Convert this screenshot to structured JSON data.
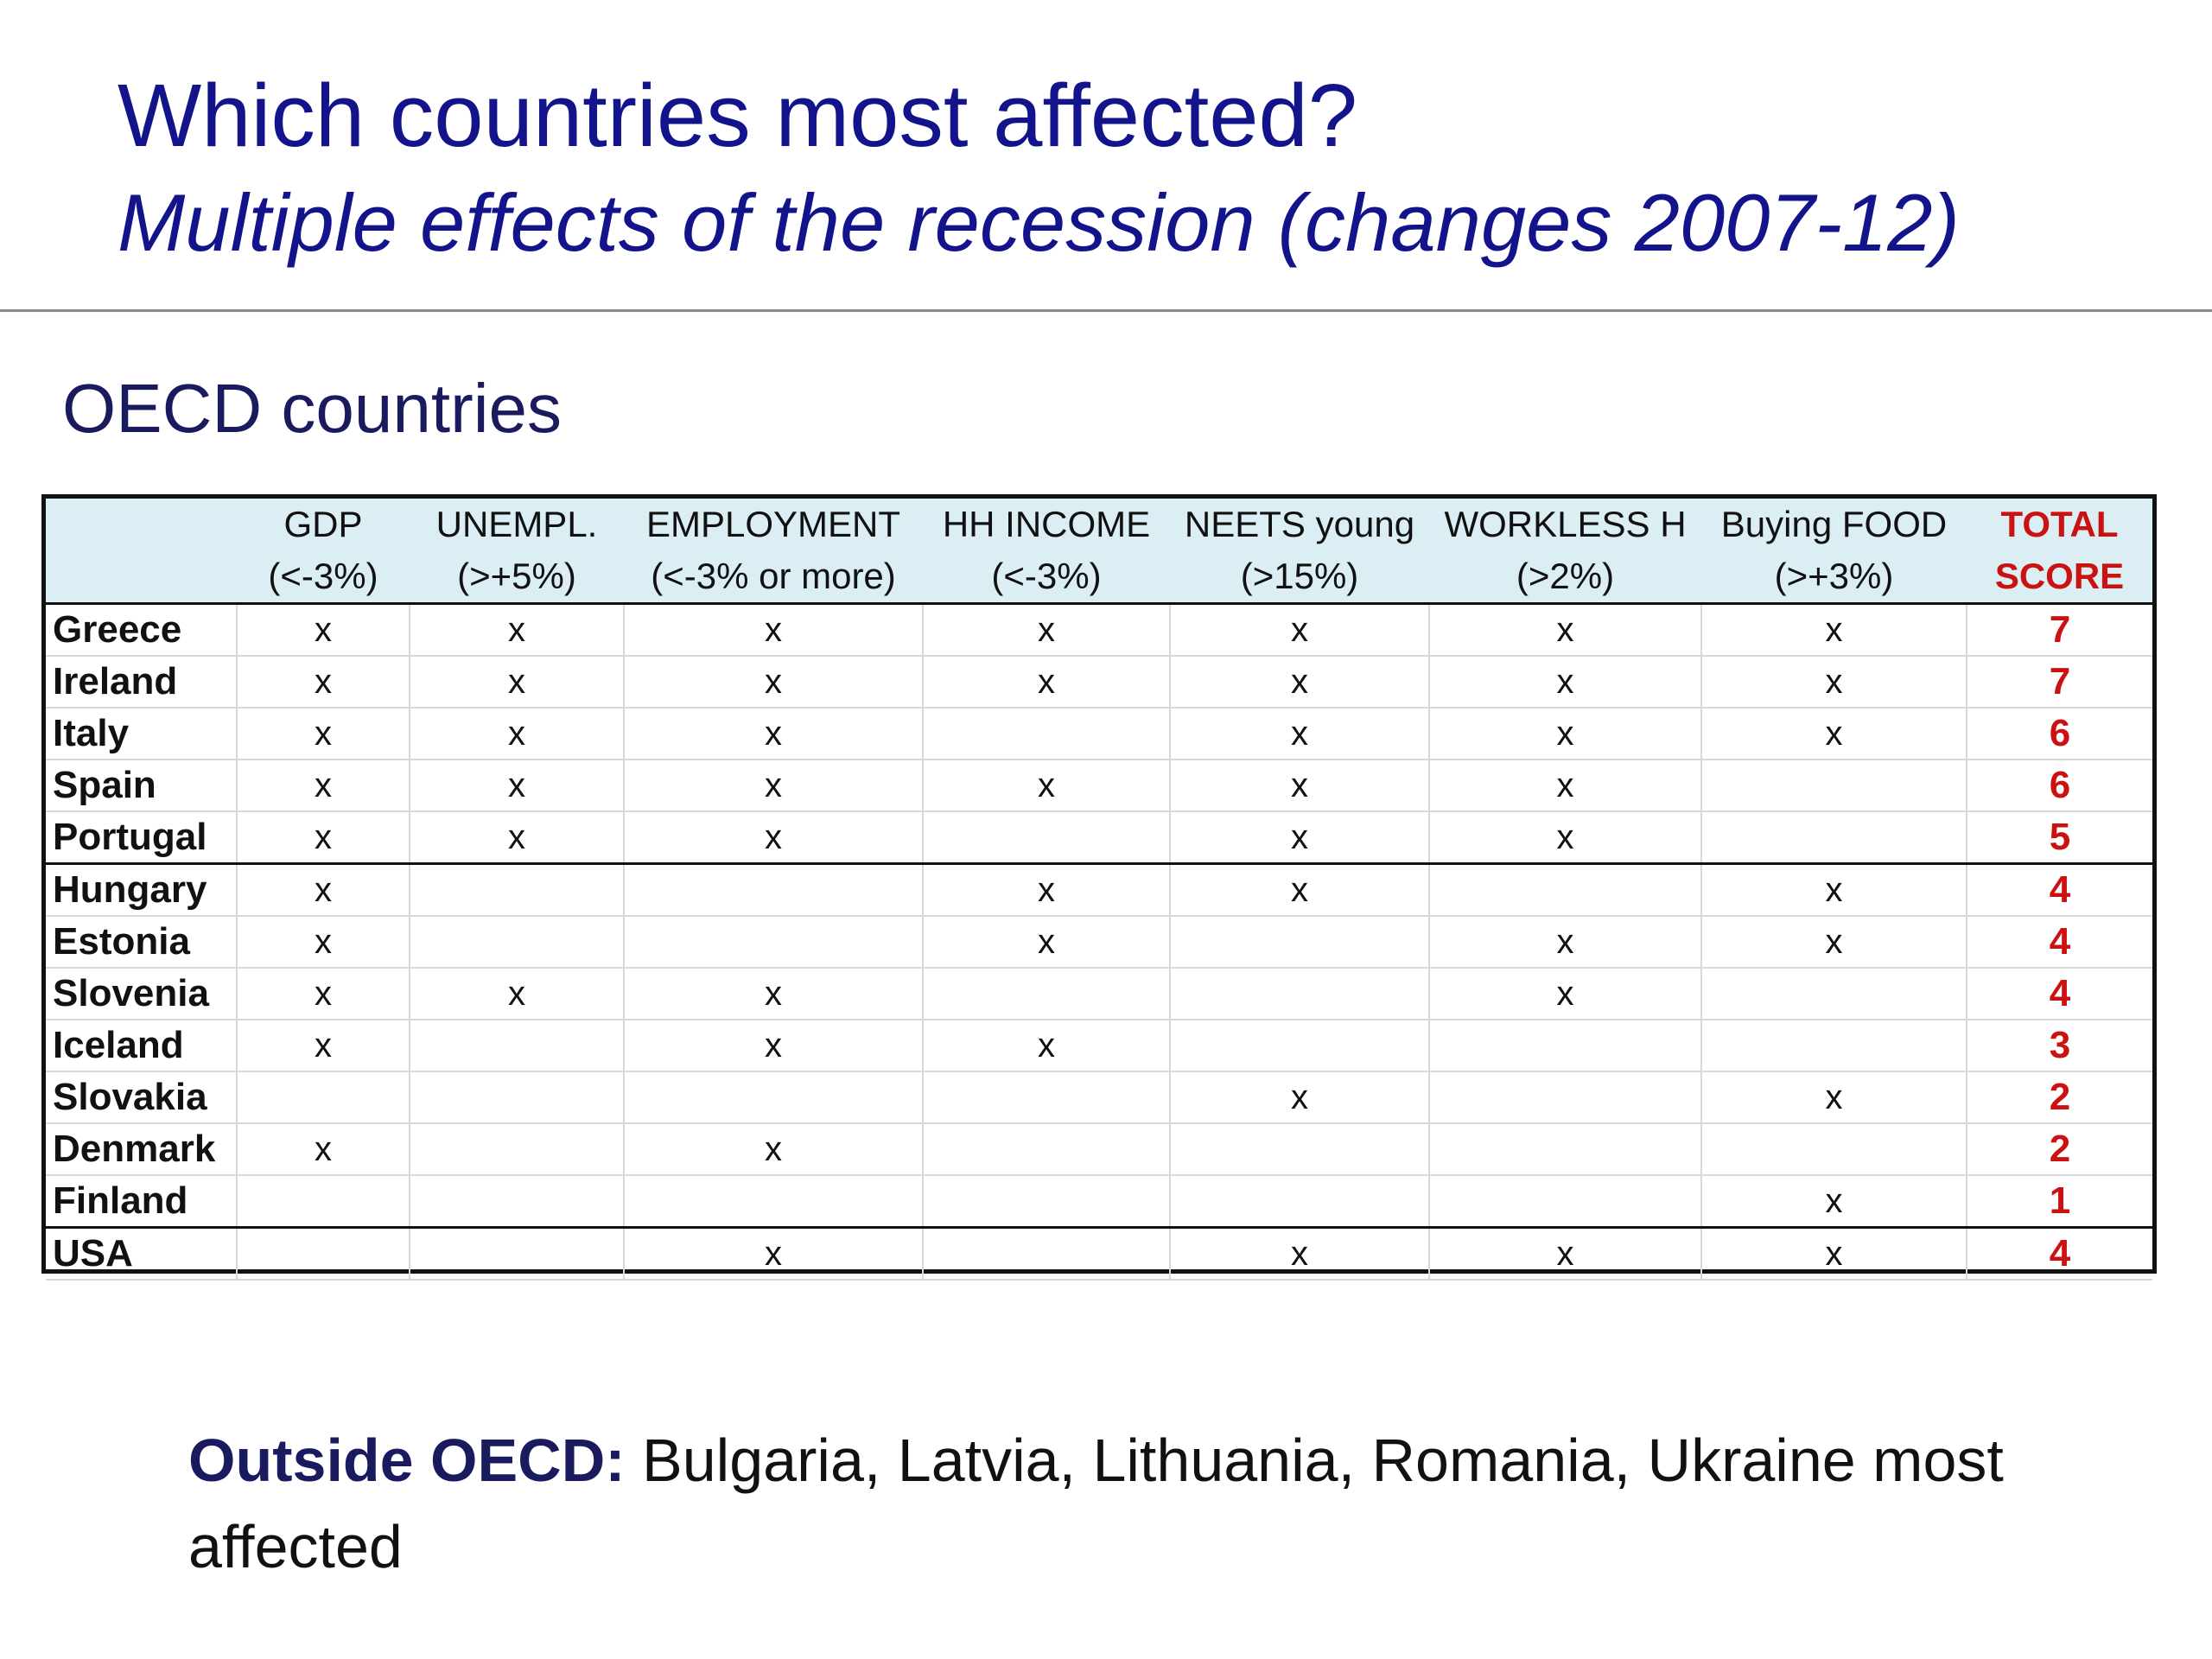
{
  "slide": {
    "title": "Which countries most affected?",
    "subtitle": "Multiple effects of the recession (changes 2007-12)",
    "section_label": "OECD countries"
  },
  "table": {
    "headers": [
      {
        "line1": "",
        "line2": ""
      },
      {
        "line1": "GDP",
        "line2": "(<-3%)"
      },
      {
        "line1": "UNEMPL.",
        "line2": "(>+5%)"
      },
      {
        "line1": "EMPLOYMENT",
        "line2": "(<-3% or more)"
      },
      {
        "line1": "HH INCOME",
        "line2": "(<-3%)"
      },
      {
        "line1": "NEETS young",
        "line2": "(>15%)"
      },
      {
        "line1": "WORKLESS H",
        "line2": "(>2%)"
      },
      {
        "line1": "Buying FOOD",
        "line2": "(>+3%)"
      },
      {
        "line1": "TOTAL",
        "line2": "SCORE"
      }
    ],
    "rows": [
      [
        "Greece",
        "x",
        "x",
        "x",
        "x",
        "x",
        "x",
        "x",
        "7"
      ],
      [
        "Ireland",
        "x",
        "x",
        "x",
        "x",
        "x",
        "x",
        "x",
        "7"
      ],
      [
        "Italy",
        "x",
        "x",
        "x",
        "",
        "x",
        "x",
        "x",
        "6"
      ],
      [
        "Spain",
        "x",
        "x",
        "x",
        "x",
        "x",
        "x",
        "",
        "6"
      ],
      [
        "Portugal",
        "x",
        "x",
        "x",
        "",
        "x",
        "x",
        "",
        "5"
      ],
      [
        "Hungary",
        "x",
        "",
        "",
        "x",
        "x",
        "",
        "x",
        "4"
      ],
      [
        "Estonia",
        "x",
        "",
        "",
        "x",
        "",
        "x",
        "x",
        "4"
      ],
      [
        "Slovenia",
        "x",
        "x",
        "x",
        "",
        "",
        "x",
        "",
        "4"
      ],
      [
        "Iceland",
        "x",
        "",
        "x",
        "x",
        "",
        "",
        "",
        "3"
      ],
      [
        "Slovakia",
        "",
        "",
        "",
        "",
        "x",
        "",
        "x",
        "2"
      ],
      [
        "Denmark",
        "x",
        "",
        "x",
        "",
        "",
        "",
        "",
        "2"
      ],
      [
        "Finland",
        "",
        "",
        "",
        "",
        "",
        "",
        "x",
        "1"
      ],
      [
        "USA",
        "",
        "",
        "x",
        "",
        "x",
        "x",
        "x",
        "4"
      ]
    ],
    "separator_before_rows": [
      5,
      12
    ]
  },
  "footer": {
    "lead": "Outside OECD:",
    "text": " Bulgaria, Latvia, Lithuania, Romania, Ukraine most affected"
  },
  "colors": {
    "title": "#13138c",
    "score": "#cc1111",
    "header_bg": "#dbeef4"
  }
}
